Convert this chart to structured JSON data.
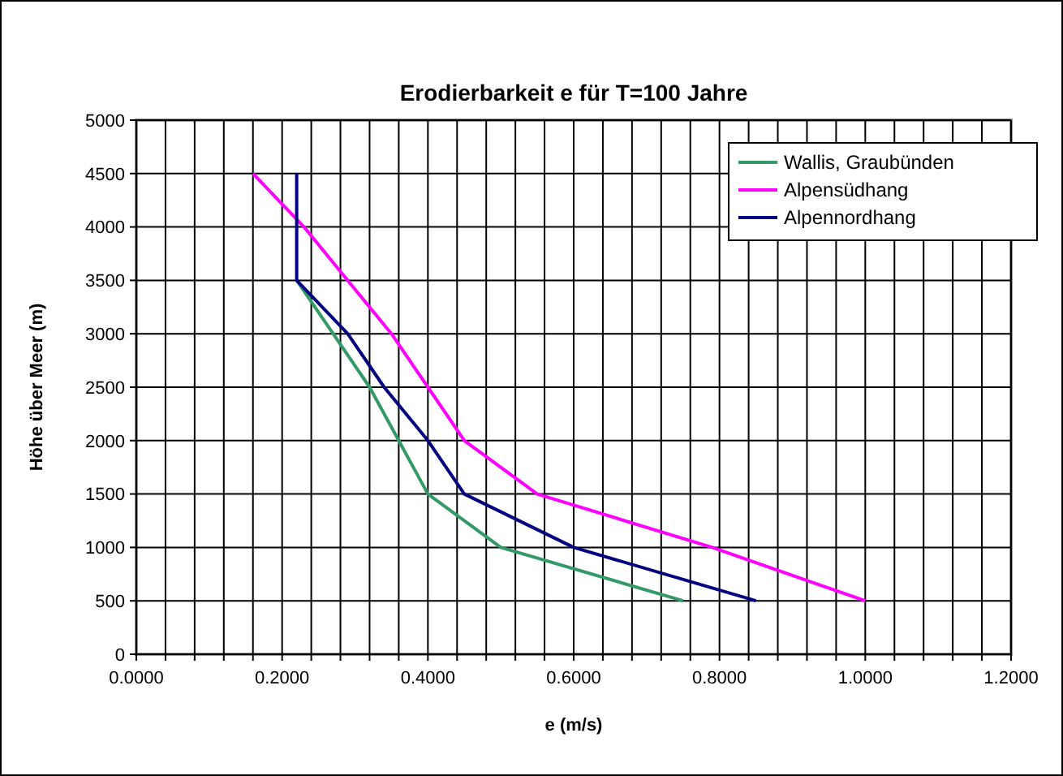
{
  "chart_data": {
    "type": "line",
    "title": "Erodierbarkeit e für T=100 Jahre",
    "xlabel": "e (m/s)",
    "ylabel": "Höhe über Meer (m)",
    "xlim": [
      0,
      1.2
    ],
    "ylim": [
      0,
      5000
    ],
    "xticks": [
      {
        "value": 0,
        "label": "0.0000"
      },
      {
        "value": 0.04,
        "label": null
      },
      {
        "value": 0.08,
        "label": null
      },
      {
        "value": 0.12,
        "label": null
      },
      {
        "value": 0.16,
        "label": null
      },
      {
        "value": 0.2,
        "label": "0.2000"
      },
      {
        "value": 0.24,
        "label": null
      },
      {
        "value": 0.28,
        "label": null
      },
      {
        "value": 0.32,
        "label": null
      },
      {
        "value": 0.36,
        "label": null
      },
      {
        "value": 0.4,
        "label": "0.4000"
      },
      {
        "value": 0.44,
        "label": null
      },
      {
        "value": 0.48,
        "label": null
      },
      {
        "value": 0.52,
        "label": null
      },
      {
        "value": 0.56,
        "label": null
      },
      {
        "value": 0.6,
        "label": "0.6000"
      },
      {
        "value": 0.64,
        "label": null
      },
      {
        "value": 0.68,
        "label": null
      },
      {
        "value": 0.72,
        "label": null
      },
      {
        "value": 0.76,
        "label": null
      },
      {
        "value": 0.8,
        "label": "0.8000"
      },
      {
        "value": 0.84,
        "label": null
      },
      {
        "value": 0.88,
        "label": null
      },
      {
        "value": 0.92,
        "label": null
      },
      {
        "value": 0.96,
        "label": null
      },
      {
        "value": 1.0,
        "label": "1.0000"
      },
      {
        "value": 1.04,
        "label": null
      },
      {
        "value": 1.08,
        "label": null
      },
      {
        "value": 1.12,
        "label": null
      },
      {
        "value": 1.16,
        "label": null
      },
      {
        "value": 1.2,
        "label": "1.2000"
      }
    ],
    "yticks": [
      0,
      500,
      1000,
      1500,
      2000,
      2500,
      3000,
      3500,
      4000,
      4500,
      5000
    ],
    "grid": true,
    "legend": "top right",
    "marker": "none",
    "line_style": "solid",
    "series": [
      {
        "name": "Wallis, Graubünden",
        "color": "#339966",
        "x": [
          0.75,
          0.5,
          0.4,
          0.36,
          0.32,
          0.27,
          0.22
        ],
        "values": [
          500,
          1000,
          1500,
          2000,
          2500,
          3000,
          3500
        ]
      },
      {
        "name": "Alpensüdhang",
        "color": "#ff00ff",
        "x": [
          1.0,
          0.79,
          0.55,
          0.45,
          0.4,
          0.35,
          0.29,
          0.23,
          0.16
        ],
        "values": [
          500,
          1000,
          1500,
          2000,
          2500,
          3000,
          3500,
          4000,
          4500
        ]
      },
      {
        "name": "Alpennordhang",
        "color": "#000080",
        "x": [
          0.85,
          0.6,
          0.45,
          0.4,
          0.34,
          0.29,
          0.22,
          0.22,
          0.22
        ],
        "values": [
          500,
          1000,
          1500,
          2000,
          2500,
          3000,
          3500,
          4000,
          4500
        ]
      }
    ]
  }
}
